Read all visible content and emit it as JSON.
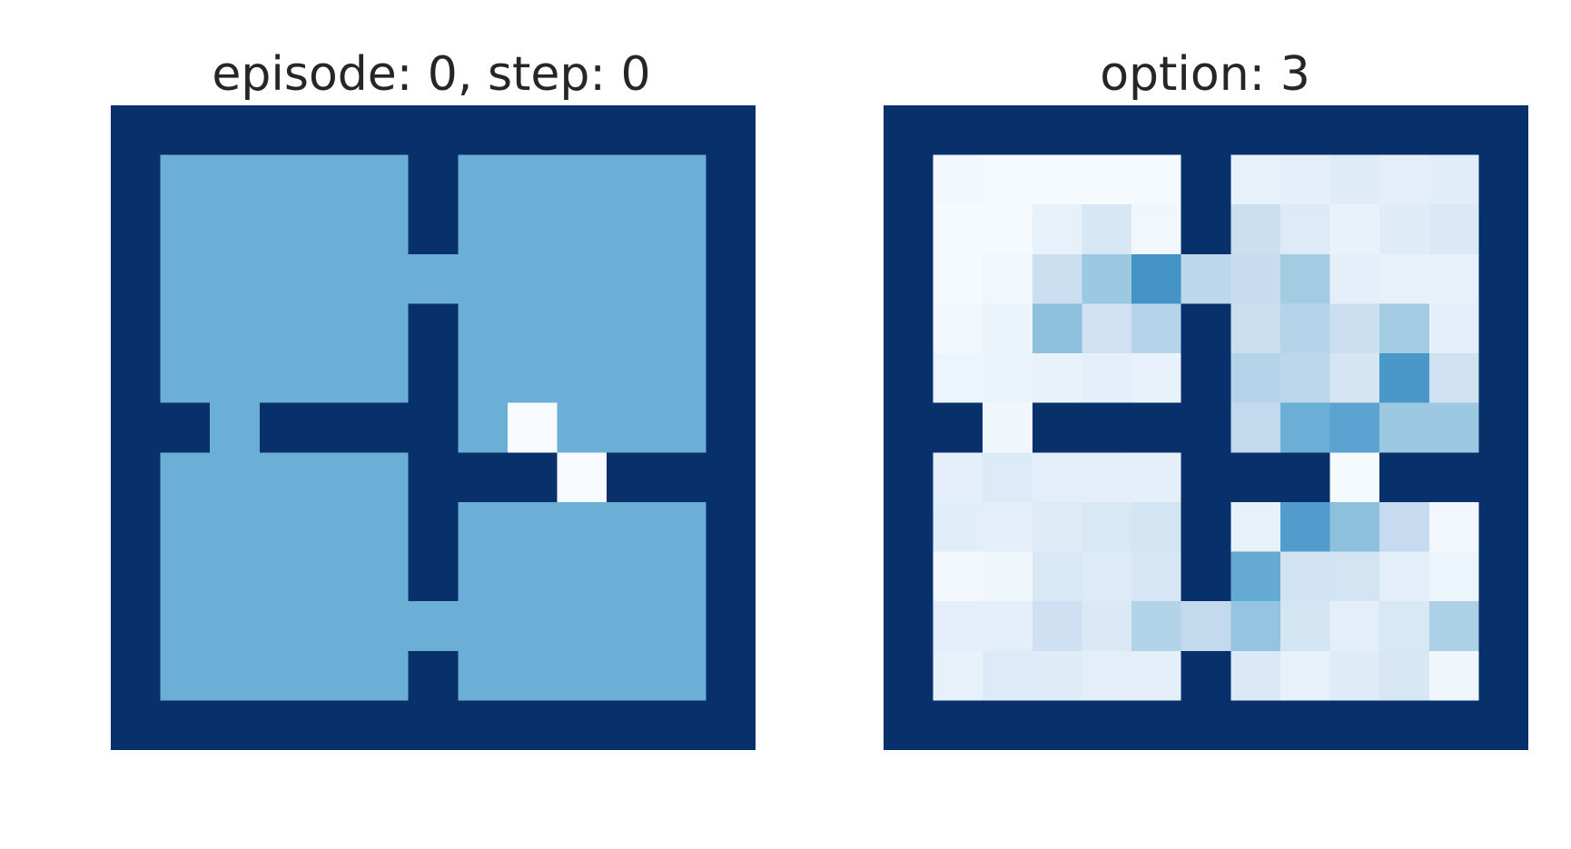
{
  "figure": {
    "panels": [
      {
        "title": "episode: 0, step: 0"
      },
      {
        "title": "option: 3"
      }
    ]
  },
  "colors": {
    "wall": "#08306b",
    "free": "#6baed6",
    "highlight": "#f7fbff",
    "colormap": "Blues"
  },
  "chart_data": [
    {
      "type": "heatmap",
      "title": "episode: 0, step: 0",
      "xlabel": "",
      "ylabel": "",
      "axes": "off",
      "legend": "none",
      "colormap": "Blues",
      "rows": 13,
      "cols": 13,
      "values": [
        [
          1,
          1,
          1,
          1,
          1,
          1,
          1,
          1,
          1,
          1,
          1,
          1,
          1
        ],
        [
          1,
          0.5,
          0.5,
          0.5,
          0.5,
          0.5,
          1,
          0.5,
          0.5,
          0.5,
          0.5,
          0.5,
          1
        ],
        [
          1,
          0.5,
          0.5,
          0.5,
          0.5,
          0.5,
          1,
          0.5,
          0.5,
          0.5,
          0.5,
          0.5,
          1
        ],
        [
          1,
          0.5,
          0.5,
          0.5,
          0.5,
          0.5,
          0.5,
          0.5,
          0.5,
          0.5,
          0.5,
          0.5,
          1
        ],
        [
          1,
          0.5,
          0.5,
          0.5,
          0.5,
          0.5,
          1,
          0.5,
          0.5,
          0.5,
          0.5,
          0.5,
          1
        ],
        [
          1,
          0.5,
          0.5,
          0.5,
          0.5,
          0.5,
          1,
          0.5,
          0.5,
          0.5,
          0.5,
          0.5,
          1
        ],
        [
          1,
          1,
          0.5,
          1,
          1,
          1,
          1,
          0.5,
          0,
          0.5,
          0.5,
          0.5,
          1
        ],
        [
          1,
          0.5,
          0.5,
          0.5,
          0.5,
          0.5,
          1,
          1,
          1,
          0,
          1,
          1,
          1
        ],
        [
          1,
          0.5,
          0.5,
          0.5,
          0.5,
          0.5,
          1,
          0.5,
          0.5,
          0.5,
          0.5,
          0.5,
          1
        ],
        [
          1,
          0.5,
          0.5,
          0.5,
          0.5,
          0.5,
          1,
          0.5,
          0.5,
          0.5,
          0.5,
          0.5,
          1
        ],
        [
          1,
          0.5,
          0.5,
          0.5,
          0.5,
          0.5,
          0.5,
          0.5,
          0.5,
          0.5,
          0.5,
          0.5,
          1
        ],
        [
          1,
          0.5,
          0.5,
          0.5,
          0.5,
          0.5,
          1,
          0.5,
          0.5,
          0.5,
          0.5,
          0.5,
          1
        ],
        [
          1,
          1,
          1,
          1,
          1,
          1,
          1,
          1,
          1,
          1,
          1,
          1,
          1
        ]
      ]
    },
    {
      "type": "heatmap",
      "title": "option: 3",
      "xlabel": "",
      "ylabel": "",
      "axes": "off",
      "legend": "none",
      "colormap": "Blues",
      "rows": 13,
      "cols": 13,
      "values": [
        [
          1,
          1,
          1,
          1,
          1,
          1,
          1,
          1,
          1,
          1,
          1,
          1,
          1
        ],
        [
          1,
          0.02,
          0.01,
          0.01,
          0.01,
          0.01,
          1,
          0.08,
          0.09,
          0.12,
          0.09,
          0.11,
          1
        ],
        [
          1,
          0.01,
          0.01,
          0.08,
          0.16,
          0.03,
          1,
          0.22,
          0.13,
          0.07,
          0.12,
          0.14,
          1
        ],
        [
          1,
          0.01,
          0.03,
          0.22,
          0.38,
          0.62,
          0.28,
          0.24,
          0.36,
          0.09,
          0.08,
          0.08,
          1
        ],
        [
          1,
          0.02,
          0.06,
          0.42,
          0.2,
          0.3,
          1,
          0.22,
          0.3,
          0.22,
          0.36,
          0.09,
          1
        ],
        [
          1,
          0.05,
          0.06,
          0.07,
          0.09,
          0.07,
          1,
          0.3,
          0.28,
          0.17,
          0.6,
          0.2,
          1
        ],
        [
          1,
          1,
          0.04,
          1,
          1,
          1,
          1,
          0.26,
          0.5,
          0.55,
          0.38,
          0.38,
          1
        ],
        [
          1,
          0.09,
          0.13,
          0.1,
          0.1,
          0.09,
          1,
          1,
          1,
          0.01,
          1,
          1,
          1
        ],
        [
          1,
          0.11,
          0.09,
          0.12,
          0.15,
          0.18,
          1,
          0.08,
          0.58,
          0.42,
          0.25,
          0.03,
          1
        ],
        [
          1,
          0.02,
          0.04,
          0.15,
          0.13,
          0.16,
          1,
          0.52,
          0.19,
          0.18,
          0.1,
          0.05,
          1
        ],
        [
          1,
          0.1,
          0.09,
          0.21,
          0.14,
          0.31,
          0.26,
          0.4,
          0.18,
          0.1,
          0.15,
          0.33,
          1
        ],
        [
          1,
          0.08,
          0.13,
          0.12,
          0.1,
          0.09,
          1,
          0.14,
          0.08,
          0.12,
          0.16,
          0.04,
          1
        ],
        [
          1,
          1,
          1,
          1,
          1,
          1,
          1,
          1,
          1,
          1,
          1,
          1,
          1
        ]
      ]
    }
  ]
}
